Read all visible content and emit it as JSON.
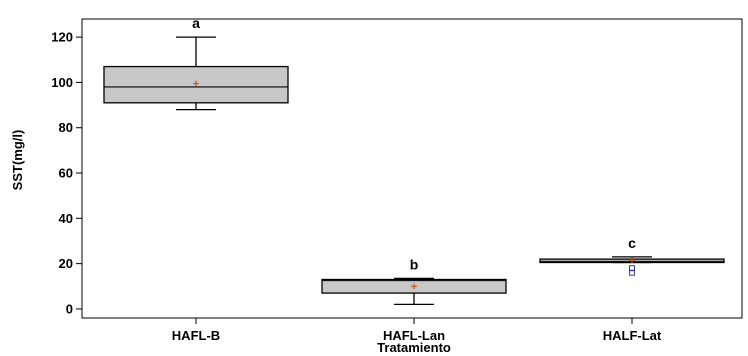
{
  "chart_data": {
    "type": "box",
    "xlabel": "Tratamiento",
    "ylabel": "SST(mg/l)",
    "ylim": [
      -4,
      128
    ],
    "yticks": [
      0,
      20,
      40,
      60,
      80,
      100,
      120
    ],
    "grid": false,
    "categories": [
      "HAFL-B",
      "HAFL-Lan",
      "HALF-Lat"
    ],
    "boxes": [
      {
        "category": "HAFL-B",
        "min": 88,
        "q1": 91,
        "median": 98,
        "q3": 107,
        "max": 120,
        "mean": 99.5,
        "outliers": [],
        "group_label": "a"
      },
      {
        "category": "HAFL-Lan",
        "min": 2,
        "q1": 7,
        "median": 12.5,
        "q3": 13,
        "max": 13.5,
        "mean": 10,
        "outliers": [],
        "group_label": "b"
      },
      {
        "category": "HALF-Lat",
        "min": 20.5,
        "q1": 20.5,
        "median": 21,
        "q3": 22,
        "max": 23,
        "mean": 21.5,
        "outliers": [
          16,
          18
        ],
        "group_label": "c"
      }
    ],
    "colors": {
      "box_fill": "#c8c8c8",
      "box_stroke": "#000000",
      "mean_marker": "#c05a2a",
      "outlier": "#3a3aa8"
    }
  }
}
